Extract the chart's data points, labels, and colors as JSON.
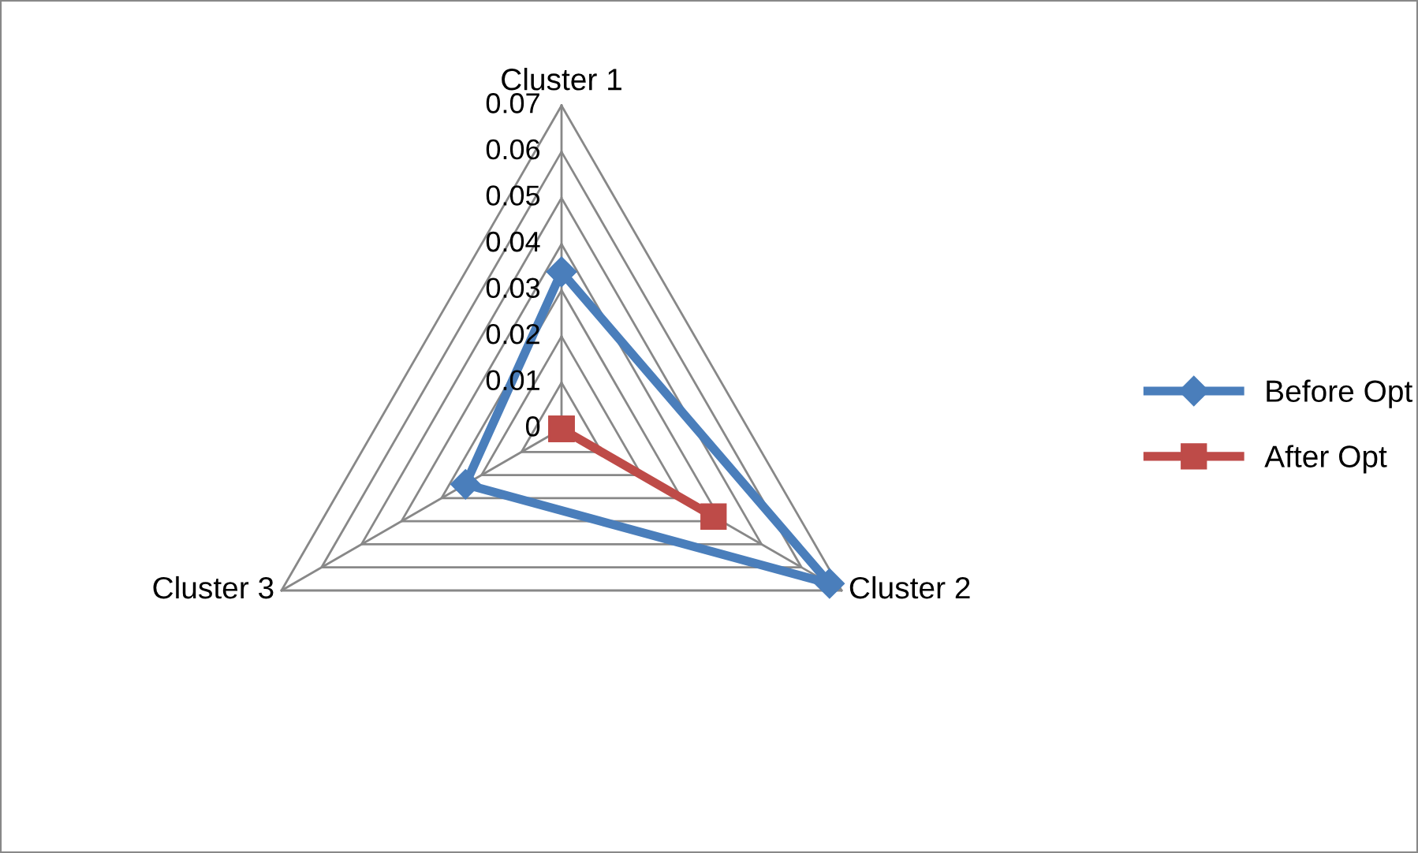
{
  "chart_data": {
    "type": "radar",
    "categories": [
      "Cluster 1",
      "Cluster 2",
      "Cluster 3"
    ],
    "series": [
      {
        "name": "Before Opt",
        "color": "#4a7ebb",
        "marker": "diamond",
        "values": [
          0.034,
          0.067,
          0.024
        ]
      },
      {
        "name": "After Opt",
        "color": "#be4b48",
        "marker": "square",
        "values": [
          0,
          0.038,
          0
        ]
      }
    ],
    "ylim": [
      0,
      0.07
    ],
    "yticks": [
      0,
      0.01,
      0.02,
      0.03,
      0.04,
      0.05,
      0.06,
      0.07
    ],
    "grid": true,
    "legend": "right"
  }
}
